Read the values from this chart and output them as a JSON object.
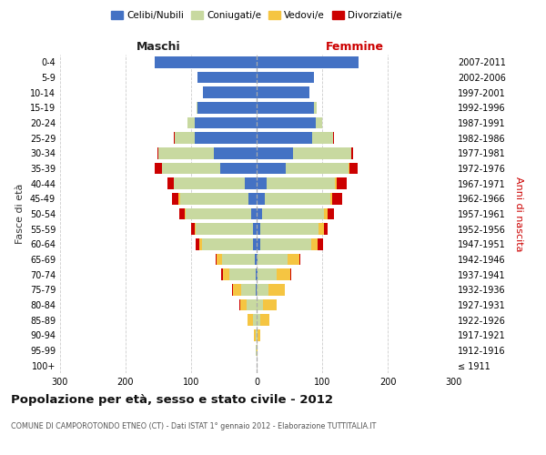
{
  "age_groups": [
    "100+",
    "95-99",
    "90-94",
    "85-89",
    "80-84",
    "75-79",
    "70-74",
    "65-69",
    "60-64",
    "55-59",
    "50-54",
    "45-49",
    "40-44",
    "35-39",
    "30-34",
    "25-29",
    "20-24",
    "15-19",
    "10-14",
    "5-9",
    "0-4"
  ],
  "birth_years": [
    "≤ 1911",
    "1912-1916",
    "1917-1921",
    "1922-1926",
    "1927-1931",
    "1932-1936",
    "1937-1941",
    "1942-1946",
    "1947-1951",
    "1952-1956",
    "1957-1961",
    "1962-1966",
    "1967-1971",
    "1972-1976",
    "1977-1981",
    "1982-1986",
    "1987-1991",
    "1992-1996",
    "1997-2001",
    "2002-2006",
    "2007-2011"
  ],
  "males_celibi": [
    0,
    0,
    0,
    0,
    0,
    2,
    2,
    3,
    5,
    5,
    8,
    12,
    18,
    55,
    65,
    95,
    95,
    90,
    82,
    90,
    155
  ],
  "males_coniugati": [
    0,
    1,
    2,
    6,
    15,
    22,
    40,
    50,
    78,
    88,
    100,
    105,
    108,
    90,
    85,
    30,
    10,
    2,
    0,
    0,
    0
  ],
  "males_vedovi": [
    0,
    0,
    2,
    8,
    10,
    12,
    10,
    8,
    5,
    2,
    2,
    2,
    0,
    0,
    0,
    0,
    0,
    0,
    0,
    0,
    0
  ],
  "males_divorziati": [
    0,
    0,
    0,
    0,
    1,
    1,
    2,
    2,
    5,
    5,
    8,
    10,
    10,
    10,
    2,
    1,
    0,
    0,
    0,
    0,
    0
  ],
  "females_nubili": [
    0,
    0,
    0,
    0,
    0,
    0,
    2,
    2,
    5,
    5,
    8,
    12,
    15,
    45,
    55,
    85,
    90,
    88,
    80,
    88,
    155
  ],
  "females_coniugate": [
    0,
    0,
    1,
    5,
    10,
    18,
    28,
    45,
    78,
    90,
    95,
    100,
    105,
    95,
    90,
    32,
    10,
    3,
    0,
    0,
    0
  ],
  "females_vedove": [
    0,
    2,
    5,
    15,
    20,
    25,
    22,
    18,
    10,
    8,
    5,
    3,
    2,
    2,
    0,
    0,
    0,
    0,
    0,
    0,
    0
  ],
  "females_divorziate": [
    0,
    0,
    0,
    0,
    1,
    0,
    1,
    2,
    8,
    5,
    10,
    15,
    15,
    12,
    2,
    1,
    0,
    0,
    0,
    0,
    0
  ],
  "color_celibi": "#4472C4",
  "color_coniugati": "#C8D9A0",
  "color_vedovi": "#F5C542",
  "color_divorziati": "#CC0000",
  "xlim": 300,
  "xticks": [
    -300,
    -200,
    -100,
    0,
    100,
    200,
    300
  ],
  "xtick_labels": [
    "300",
    "200",
    "100",
    "0",
    "100",
    "200",
    "300"
  ],
  "title": "Popolazione per età, sesso e stato civile - 2012",
  "subtitle": "COMUNE DI CAMPOROTONDO ETNEO (CT) - Dati ISTAT 1° gennaio 2012 - Elaborazione TUTTITALIA.IT",
  "legend_labels": [
    "Celibi/Nubili",
    "Coniugati/e",
    "Vedovi/e",
    "Divorziati/e"
  ],
  "label_maschi": "Maschi",
  "label_femmine": "Femmine",
  "ylabel_left": "Fasce di età",
  "ylabel_right": "Anni di nascita",
  "bg_color": "#ffffff",
  "grid_color": "#cccccc"
}
